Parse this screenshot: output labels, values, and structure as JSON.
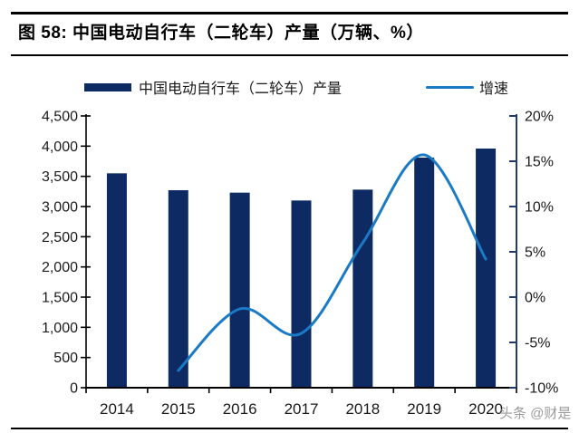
{
  "figure": {
    "title": "图 58: 中国电动自行车（二轮车）产量（万辆、%）"
  },
  "legend": {
    "bar_label": "中国电动自行车（二轮车）产量",
    "line_label": "增速"
  },
  "watermark": {
    "text": "头条 @财是"
  },
  "colors": {
    "bar": "#0e2a63",
    "line": "#1a7ac6",
    "left_axis": "#000000",
    "right_axis": "#1f3a70",
    "tick_text": "#1a1a1a",
    "watermark": "#9b9b9b"
  },
  "chart_data": {
    "type": "bar",
    "title": "中国电动自行车（二轮车）产量（万辆、%）",
    "categories": [
      "2014",
      "2015",
      "2016",
      "2017",
      "2018",
      "2019",
      "2020"
    ],
    "series": [
      {
        "name": "中国电动自行车（二轮车）产量",
        "type": "bar",
        "axis": "left",
        "values": [
          3550,
          3270,
          3230,
          3100,
          3280,
          3810,
          3960
        ]
      },
      {
        "name": "增速",
        "type": "line",
        "axis": "right",
        "values": [
          null,
          -8.1,
          -1.3,
          -4.0,
          6.0,
          15.7,
          4.2
        ]
      }
    ],
    "left_axis": {
      "min": 0,
      "max": 4500,
      "step": 500,
      "tick_labels": [
        "0",
        "500",
        "1,000",
        "1,500",
        "2,000",
        "2,500",
        "3,000",
        "3,500",
        "4,000",
        "4,500"
      ]
    },
    "right_axis": {
      "min": -10,
      "max": 20,
      "step": 5,
      "tick_labels": [
        "-10%",
        "-5%",
        "0%",
        "5%",
        "10%",
        "15%",
        "20%"
      ]
    },
    "legend_position": "top",
    "grid": false
  }
}
